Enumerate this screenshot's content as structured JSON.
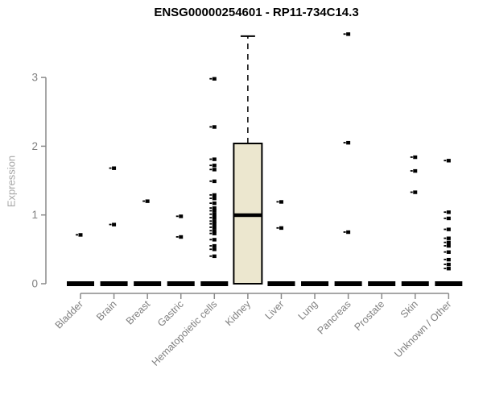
{
  "title": "ENSG00000254601 - RP11-734C14.3",
  "y_axis": {
    "label": "Expression",
    "ticks": [
      "0",
      "1",
      "2",
      "3"
    ]
  },
  "colors": {
    "box_fill": "#ECE7CF",
    "box_border": "#000000",
    "point": "#000000",
    "axis": "#8a8a8a",
    "tick_label": "#7f7f7f",
    "ylabel": "#a6a6a6",
    "title": "#000000",
    "background": "#ffffff"
  },
  "chart_data": {
    "type": "boxplot",
    "title": "ENSG00000254601 - RP11-734C14.3",
    "xlabel": "",
    "ylabel": "Expression",
    "ylim": [
      0,
      3.7
    ],
    "yticks": [
      0,
      1,
      2,
      3
    ],
    "grid": false,
    "legend": null,
    "categories": [
      "Bladder",
      "Brain",
      "Breast",
      "Gastric",
      "Hematopoietic cells",
      "Kidney",
      "Liver",
      "Lung",
      "Pancreas",
      "Prostate",
      "Skin",
      "Unknown / Other"
    ],
    "series": [
      {
        "category": "Bladder",
        "box": {
          "q1": 0,
          "median": 0,
          "q3": 0,
          "whisker_low": 0,
          "whisker_high": 0
        },
        "points": [
          0.71
        ]
      },
      {
        "category": "Brain",
        "box": {
          "q1": 0,
          "median": 0,
          "q3": 0,
          "whisker_low": 0,
          "whisker_high": 0
        },
        "points": [
          1.68,
          0.86
        ]
      },
      {
        "category": "Breast",
        "box": {
          "q1": 0,
          "median": 0,
          "q3": 0,
          "whisker_low": 0,
          "whisker_high": 0
        },
        "points": [
          1.2
        ]
      },
      {
        "category": "Gastric",
        "box": {
          "q1": 0,
          "median": 0,
          "q3": 0,
          "whisker_low": 0,
          "whisker_high": 0
        },
        "points": [
          0.98,
          0.68
        ]
      },
      {
        "category": "Hematopoietic cells",
        "box": {
          "q1": 0,
          "median": 0,
          "q3": 0,
          "whisker_low": 0,
          "whisker_high": 0
        },
        "points": [
          2.98,
          2.28,
          1.81,
          1.72,
          1.66,
          1.49,
          1.29,
          1.24,
          1.17,
          1.1,
          1.06,
          1.01,
          0.96,
          0.91,
          0.87,
          0.82,
          0.77,
          0.73,
          0.64,
          0.55,
          0.5,
          0.4
        ]
      },
      {
        "category": "Kidney",
        "box": {
          "q1": 0,
          "median": 1.0,
          "q3": 2.04,
          "whisker_low": 0,
          "whisker_high": 3.6
        },
        "points": []
      },
      {
        "category": "Liver",
        "box": {
          "q1": 0,
          "median": 0,
          "q3": 0,
          "whisker_low": 0,
          "whisker_high": 0
        },
        "points": [
          1.19,
          0.81
        ]
      },
      {
        "category": "Lung",
        "box": {
          "q1": 0,
          "median": 0,
          "q3": 0,
          "whisker_low": 0,
          "whisker_high": 0
        },
        "points": []
      },
      {
        "category": "Pancreas",
        "box": {
          "q1": 0,
          "median": 0,
          "q3": 0,
          "whisker_low": 0,
          "whisker_high": 0
        },
        "points": [
          3.63,
          2.05,
          0.75
        ]
      },
      {
        "category": "Prostate",
        "box": {
          "q1": 0,
          "median": 0,
          "q3": 0,
          "whisker_low": 0,
          "whisker_high": 0
        },
        "points": []
      },
      {
        "category": "Skin",
        "box": {
          "q1": 0,
          "median": 0,
          "q3": 0,
          "whisker_low": 0,
          "whisker_high": 0
        },
        "points": [
          1.84,
          1.64,
          1.33
        ]
      },
      {
        "category": "Unknown / Other",
        "box": {
          "q1": 0,
          "median": 0,
          "q3": 0,
          "whisker_low": 0,
          "whisker_high": 0
        },
        "points": [
          1.79,
          1.04,
          0.95,
          0.79,
          0.66,
          0.6,
          0.55,
          0.46,
          0.35,
          0.28,
          0.22
        ]
      }
    ]
  }
}
